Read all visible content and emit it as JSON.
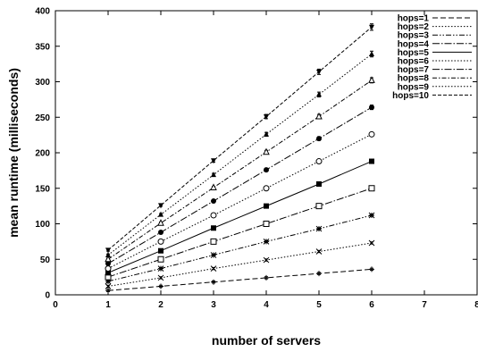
{
  "chart_data": {
    "type": "line",
    "xlabel": "number of servers",
    "ylabel": "mean runtime (milliseconds)",
    "xlim": [
      0,
      8
    ],
    "ylim": [
      0,
      400
    ],
    "xticks": [
      "0",
      "1",
      "2",
      "3",
      "4",
      "5",
      "6",
      "7",
      "8"
    ],
    "yticks": [
      "0",
      "50",
      "100",
      "150",
      "200",
      "250",
      "300",
      "350",
      "400"
    ],
    "x": [
      1,
      2,
      3,
      4,
      5,
      6
    ],
    "grid": false,
    "legend_position": "top-right",
    "series": [
      {
        "name": "hops=1",
        "values": [
          6,
          12,
          18,
          24,
          30,
          36
        ],
        "marker": "plus",
        "dash": "6,3"
      },
      {
        "name": "hops=2",
        "values": [
          12,
          24,
          37,
          49,
          61,
          73
        ],
        "marker": "x",
        "dash": "1.5,2"
      },
      {
        "name": "hops=3",
        "values": [
          19,
          37,
          56,
          75,
          93,
          112
        ],
        "marker": "asterisk",
        "dash": "6,2,1.5,2,1.5,2"
      },
      {
        "name": "hops=4",
        "values": [
          25,
          50,
          75,
          100,
          125,
          150
        ],
        "marker": "open-square",
        "dash": "8,2,1.5,2"
      },
      {
        "name": "hops=5",
        "values": [
          31,
          62,
          94,
          125,
          156,
          188
        ],
        "marker": "filled-square",
        "dash": ""
      },
      {
        "name": "hops=6",
        "values": [
          37,
          75,
          112,
          150,
          188,
          226
        ],
        "marker": "open-circle",
        "dash": "1.5,2"
      },
      {
        "name": "hops=7",
        "values": [
          44,
          88,
          132,
          176,
          220,
          264
        ],
        "marker": "filled-circle",
        "dash": "8,2,1.5,2"
      },
      {
        "name": "hops=8",
        "values": [
          50,
          101,
          151,
          201,
          251,
          302
        ],
        "marker": "triangle",
        "dash": "5,2,1.5,2"
      },
      {
        "name": "hops=9",
        "values": [
          56,
          113,
          169,
          226,
          282,
          339
        ],
        "marker": "filled-triangle",
        "dash": "1.5,2"
      },
      {
        "name": "hops=10",
        "values": [
          63,
          126,
          189,
          251,
          314,
          377
        ],
        "marker": "filled-inv-triangle",
        "dash": "4,2"
      }
    ]
  }
}
